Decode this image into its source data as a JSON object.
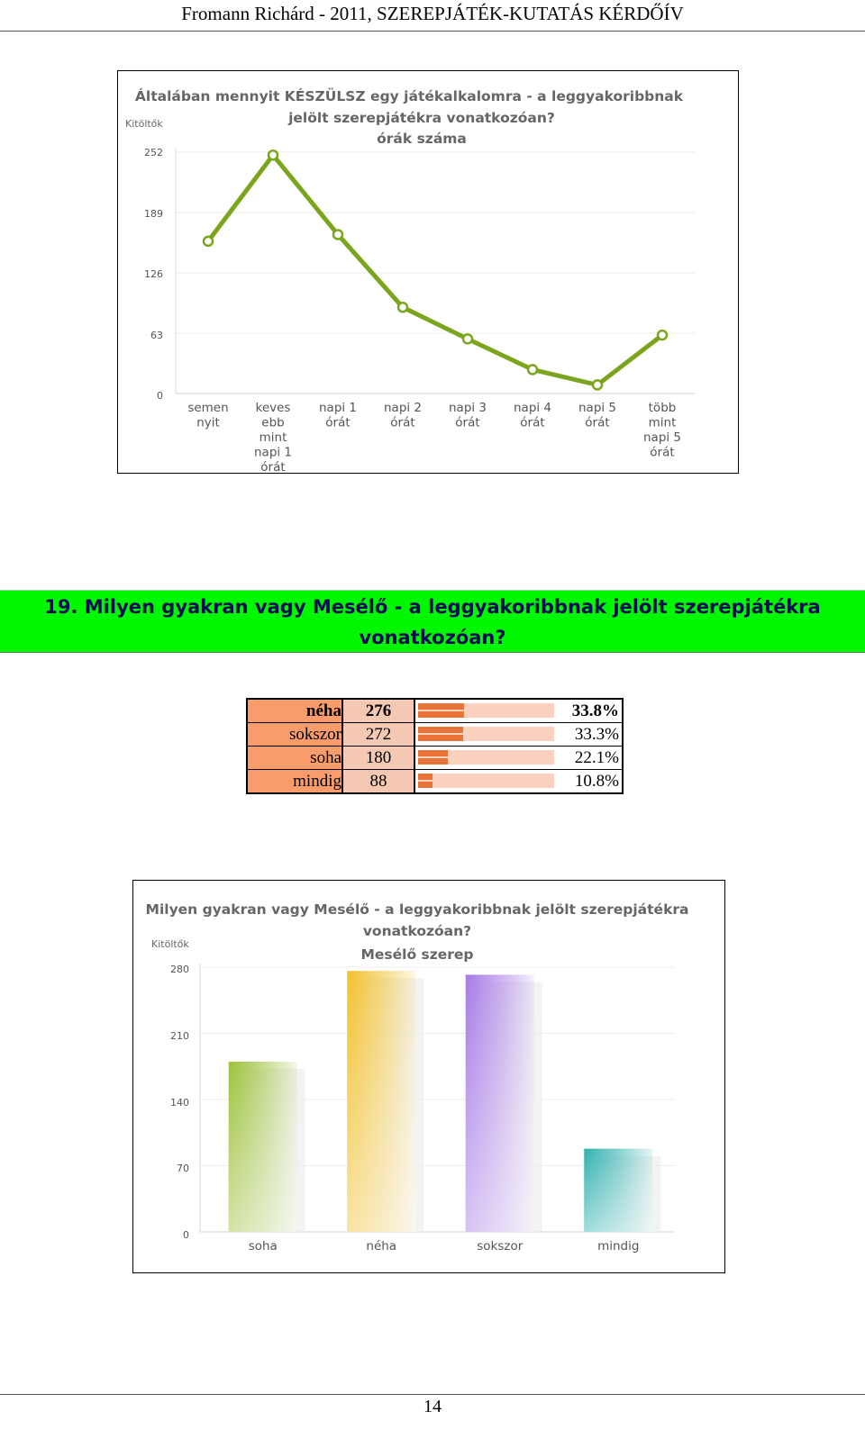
{
  "header": {
    "title": "Fromann Richárd - 2011, SZEREPJÁTÉK-KUTATÁS KÉRDŐÍV"
  },
  "chart1": {
    "title_line1": "Általában mennyit KÉSZÜLSZ egy játékalkalomra -  a leggyakoribbnak",
    "title_line2": "jelölt szerepjátékra vonatkozóan?",
    "title_line3": "órák száma",
    "ylabel": "Kitöltők",
    "ticks": [
      "252",
      "189",
      "126",
      "63",
      "0"
    ]
  },
  "question": {
    "line1": "19. Milyen gyakran vagy Mesélő - a leggyakoribbnak jelölt szerepjátékra",
    "line2": "vonatkozóan?"
  },
  "freq_table": [
    {
      "label": "néha",
      "count": "276",
      "pct": "33.8%",
      "fraction": 0.338
    },
    {
      "label": "sokszor",
      "count": "272",
      "pct": "33.3%",
      "fraction": 0.333
    },
    {
      "label": "soha",
      "count": "180",
      "pct": "22.1%",
      "fraction": 0.221
    },
    {
      "label": "mindig",
      "count": "88",
      "pct": "10.8%",
      "fraction": 0.108
    }
  ],
  "chart2": {
    "title_line1": "Milyen gyakran vagy Mesélő - a leggyakoribbnak jelölt szerepjátékra",
    "title_line2": "vonatkozóan?",
    "title_line3": "Mesélő szerep",
    "ylabel": "Kitöltők",
    "ticks": [
      "280",
      "210",
      "140",
      "70",
      "0"
    ]
  },
  "chart_data": [
    {
      "type": "line",
      "title": "Általában mennyit KÉSZÜLSZ egy játékalkalomra -  a leggyakoribbnak jelölt szerepjátékra vonatkozóan? órák száma",
      "ylabel": "Kitöltők",
      "ylim": [
        0,
        252
      ],
      "yticks": [
        0,
        63,
        126,
        189,
        252
      ],
      "grid": true,
      "color": "#7aa51c",
      "categories": [
        [
          "semen",
          "nyit"
        ],
        [
          "keves",
          "ebb",
          "mint",
          "napi 1",
          "órát"
        ],
        [
          "napi 1",
          "órát"
        ],
        [
          "napi 2",
          "órát"
        ],
        [
          "napi 3",
          "órát"
        ],
        [
          "napi 4",
          "órát"
        ],
        [
          "napi 5",
          "órát"
        ],
        [
          "több",
          "mint",
          "napi 5",
          "órát"
        ]
      ],
      "values": [
        159,
        249,
        166,
        90,
        57,
        25,
        9,
        61
      ]
    },
    {
      "type": "bar",
      "title": "Milyen gyakran vagy Mesélő - a leggyakoribbnak jelölt szerepjátékra vonatkozóan? Mesélő szerep",
      "ylabel": "Kitöltők",
      "ylim": [
        0,
        280
      ],
      "yticks": [
        0,
        70,
        140,
        210,
        280
      ],
      "grid": true,
      "categories": [
        "soha",
        "néha",
        "sokszor",
        "mindig"
      ],
      "values": [
        180,
        276,
        272,
        88
      ],
      "colors": [
        "#9cc23a",
        "#f2c12e",
        "#a77be6",
        "#2fb1b0"
      ]
    }
  ],
  "footer": {
    "page": "14"
  }
}
